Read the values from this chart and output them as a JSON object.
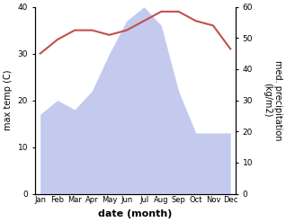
{
  "months": [
    "Jan",
    "Feb",
    "Mar",
    "Apr",
    "May",
    "Jun",
    "Jul",
    "Aug",
    "Sep",
    "Oct",
    "Nov",
    "Dec"
  ],
  "temperature": [
    30,
    33,
    35,
    35,
    34,
    35,
    37,
    39,
    39,
    37,
    36,
    31
  ],
  "precipitation": [
    17,
    20,
    18,
    22,
    30,
    37,
    40,
    36,
    22,
    13,
    13,
    13
  ],
  "temp_color": "#c0504d",
  "precip_color": "#aab4e8",
  "ylabel_left": "max temp (C)",
  "ylabel_right": "med. precipitation\n(kg/m2)",
  "xlabel": "date (month)",
  "ylim_left": [
    0,
    40
  ],
  "ylim_right": [
    0,
    60
  ],
  "left_ticks": [
    0,
    10,
    20,
    30,
    40
  ],
  "right_ticks": [
    0,
    10,
    20,
    30,
    40,
    50,
    60
  ]
}
